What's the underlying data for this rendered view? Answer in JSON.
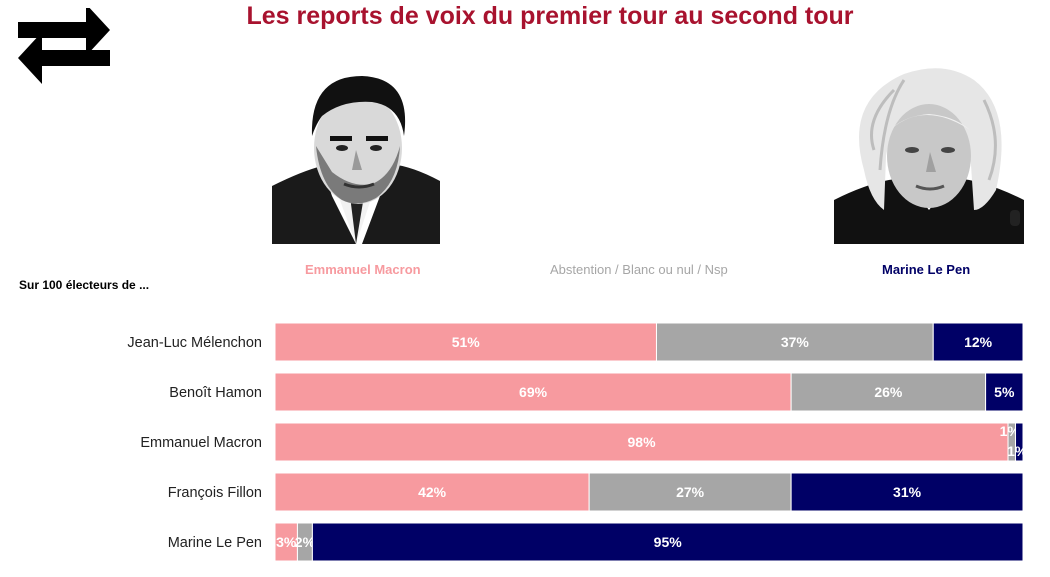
{
  "title": "Les reports de voix du premier tour au second tour",
  "icon": "swap-arrows-icon",
  "candidates": {
    "macron": {
      "name": "Emmanuel Macron",
      "color": "#f79a9f"
    },
    "abstention": {
      "name": "Abstention / Blanc ou nul / Nsp",
      "color": "#a6a6a6"
    },
    "lepen": {
      "name": "Marine Le Pen",
      "color": "#000066"
    }
  },
  "intro": "Sur 100 électeurs de ...",
  "chart_data": {
    "type": "bar",
    "orientation": "horizontal",
    "stacked": true,
    "categories": [
      "Jean-Luc Mélenchon",
      "Benoît Hamon",
      "Emmanuel Macron",
      "François Fillon",
      "Marine Le Pen"
    ],
    "series": [
      {
        "name": "Emmanuel Macron",
        "color": "#f79a9f",
        "values": [
          51,
          69,
          98,
          42,
          3
        ],
        "labels": [
          "51%",
          "69%",
          "98%",
          "42%",
          "3%"
        ]
      },
      {
        "name": "Abstention / Blanc ou nul / Nsp",
        "color": "#a6a6a6",
        "values": [
          37,
          26,
          1,
          27,
          2
        ],
        "labels": [
          "37%",
          "26%",
          "1%",
          "27%",
          "2%"
        ]
      },
      {
        "name": "Marine Le Pen",
        "color": "#000066",
        "values": [
          12,
          5,
          1,
          31,
          95
        ],
        "labels": [
          "12%",
          "5%",
          "1%",
          "31%",
          "95%"
        ]
      }
    ],
    "xlim": [
      0,
      100
    ],
    "grid": false,
    "legend": "top"
  }
}
